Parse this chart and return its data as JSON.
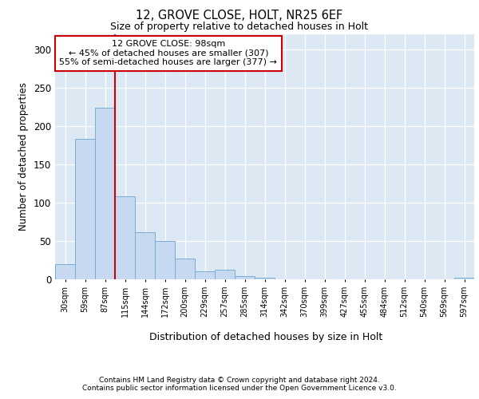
{
  "title1": "12, GROVE CLOSE, HOLT, NR25 6EF",
  "title2": "Size of property relative to detached houses in Holt",
  "xlabel": "Distribution of detached houses by size in Holt",
  "ylabel": "Number of detached properties",
  "bar_values": [
    20,
    183,
    224,
    108,
    61,
    50,
    27,
    10,
    13,
    4,
    2,
    0,
    0,
    0,
    0,
    0,
    0,
    0,
    0,
    0,
    2
  ],
  "bin_labels": [
    "30sqm",
    "59sqm",
    "87sqm",
    "115sqm",
    "144sqm",
    "172sqm",
    "200sqm",
    "229sqm",
    "257sqm",
    "285sqm",
    "314sqm",
    "342sqm",
    "370sqm",
    "399sqm",
    "427sqm",
    "455sqm",
    "484sqm",
    "512sqm",
    "540sqm",
    "569sqm",
    "597sqm"
  ],
  "bar_color": "#c6d9f0",
  "bar_edge_color": "#7aadd4",
  "vline_color": "#cc0000",
  "vline_x": 2.5,
  "annotation_text": "12 GROVE CLOSE: 98sqm\n← 45% of detached houses are smaller (307)\n55% of semi-detached houses are larger (377) →",
  "annotation_box_facecolor": "#ffffff",
  "annotation_box_edgecolor": "#cc0000",
  "ylim": [
    0,
    320
  ],
  "yticks": [
    0,
    50,
    100,
    150,
    200,
    250,
    300
  ],
  "bg_color": "#dce9f5",
  "footer1": "Contains HM Land Registry data © Crown copyright and database right 2024.",
  "footer2": "Contains public sector information licensed under the Open Government Licence v3.0."
}
